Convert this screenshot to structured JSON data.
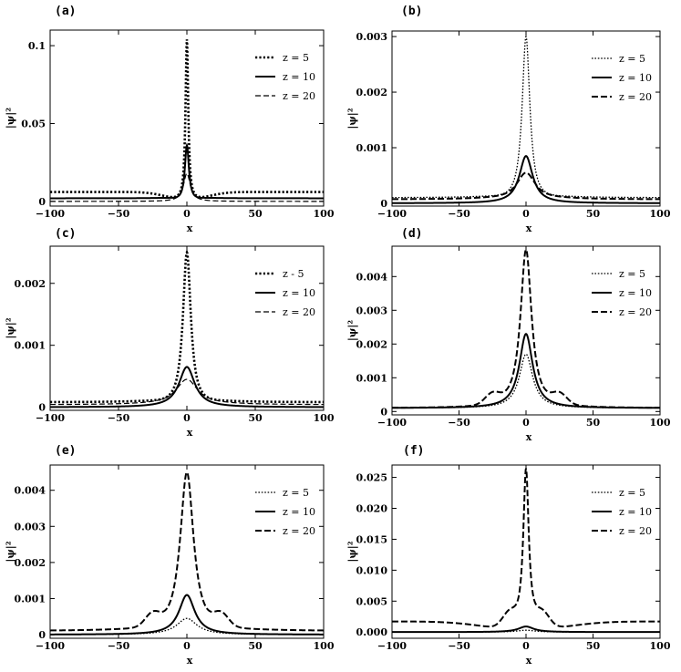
{
  "chart_data": [
    {
      "panel": "(a)",
      "type": "line",
      "xlabel": "x",
      "ylabel": "|ψ|²",
      "xlim": [
        -100,
        100
      ],
      "ylim": [
        -0.003,
        0.11
      ],
      "xticks": [
        -100,
        -50,
        0,
        50,
        100
      ],
      "yticks": [
        0,
        0.05,
        0.1
      ],
      "ytick_labels": [
        "0",
        "0.05",
        "0.1"
      ],
      "legend": [
        "z = 5",
        "z = 10",
        "z = 20"
      ],
      "legend_position": "top-right",
      "series": [
        {
          "name": "z = 5",
          "style": "dotted-thick",
          "baseline": 0.006,
          "dip": -0.006,
          "dip_w": 20,
          "peak": 0.104,
          "peak_w": 1.2
        },
        {
          "name": "z = 10",
          "style": "solid-thick",
          "baseline": 0.002,
          "dip": -0.002,
          "dip_w": 10,
          "peak": 0.036,
          "peak_w": 1.8
        },
        {
          "name": "z = 20",
          "style": "dashed-thin",
          "baseline": 0.0,
          "dip": 0.0,
          "dip_w": 10,
          "peak": 0.018,
          "peak_w": 3.0
        }
      ]
    },
    {
      "panel": "(b)",
      "type": "line",
      "xlabel": "x",
      "ylabel": "|ψ|²",
      "xlim": [
        -100,
        100
      ],
      "ylim": [
        -5e-05,
        0.0031
      ],
      "xticks": [
        -100,
        -50,
        0,
        50,
        100
      ],
      "yticks": [
        0,
        0.001,
        0.002,
        0.003
      ],
      "ytick_labels": [
        "0",
        "0.001",
        "0.002",
        "0.003"
      ],
      "legend": [
        "z = 5",
        "z = 10",
        "z = 20"
      ],
      "legend_position": "top-right",
      "series": [
        {
          "name": "z = 5",
          "style": "dotted-thin",
          "baseline": 0.0001,
          "dip": -0.0001,
          "dip_w": 20,
          "peak": 0.003,
          "peak_w": 3.5
        },
        {
          "name": "z = 10",
          "style": "solid-thick",
          "baseline": 0.0,
          "dip": 0.0,
          "dip_w": 10,
          "peak": 0.00085,
          "peak_w": 6
        },
        {
          "name": "z = 20",
          "style": "dashed-thick",
          "baseline": 7e-05,
          "dip": -7e-05,
          "dip_w": 18,
          "peak": 0.00055,
          "peak_w": 9
        }
      ]
    },
    {
      "panel": "(c)",
      "type": "line",
      "xlabel": "x",
      "ylabel": "|ψ|²",
      "xlim": [
        -100,
        100
      ],
      "ylim": [
        -5e-05,
        0.0026
      ],
      "xticks": [
        -100,
        -50,
        0,
        50,
        100
      ],
      "yticks": [
        0,
        0.001,
        0.002
      ],
      "ytick_labels": [
        "0",
        "0.001",
        "0.002"
      ],
      "legend": [
        "z - 5",
        "z = 10",
        "z = 20"
      ],
      "legend_position": "top-right",
      "series": [
        {
          "name": "z - 5",
          "style": "dotted-thick",
          "baseline": 8e-05,
          "dip": -8e-05,
          "dip_w": 20,
          "peak": 0.0025,
          "peak_w": 3.5
        },
        {
          "name": "z = 10",
          "style": "solid-thick",
          "baseline": 0.0,
          "dip": 0.0,
          "dip_w": 10,
          "peak": 0.00065,
          "peak_w": 7
        },
        {
          "name": "z = 20",
          "style": "dashed-thin",
          "baseline": 4e-05,
          "dip": -4e-05,
          "dip_w": 18,
          "peak": 0.00045,
          "peak_w": 10
        }
      ]
    },
    {
      "panel": "(d)",
      "type": "line",
      "xlabel": "x",
      "ylabel": "|ψ|²",
      "xlim": [
        -100,
        100
      ],
      "ylim": [
        -0.0001,
        0.0049
      ],
      "xticks": [
        -100,
        -50,
        0,
        50,
        100
      ],
      "yticks": [
        0,
        0.001,
        0.002,
        0.003,
        0.004
      ],
      "ytick_labels": [
        "0",
        "0.001",
        "0.002",
        "0.003",
        "0.004"
      ],
      "legend": [
        "z = 5",
        "z = 10",
        "z = 20"
      ],
      "legend_position": "top-right",
      "series": [
        {
          "name": "z = 5",
          "style": "dotted-thin",
          "baseline": 0.0001,
          "dip": 0.0,
          "dip_w": 10,
          "peak": 0.0016,
          "peak_w": 6
        },
        {
          "name": "z = 10",
          "style": "solid-thick",
          "baseline": 0.0001,
          "dip": 0.0,
          "dip_w": 10,
          "peak": 0.0022,
          "peak_w": 6
        },
        {
          "name": "z = 20",
          "style": "dashed-thick",
          "baseline": 0.0001,
          "dip": 0.0,
          "dip_w": 10,
          "peak": 0.0047,
          "peak_w": 5,
          "shoulder": 0.0003,
          "shoulder_x": 25
        }
      ]
    },
    {
      "panel": "(e)",
      "type": "line",
      "xlabel": "x",
      "ylabel": "|ψ|²",
      "xlim": [
        -100,
        100
      ],
      "ylim": [
        -0.0001,
        0.0047
      ],
      "xticks": [
        -100,
        -50,
        0,
        50,
        100
      ],
      "yticks": [
        0,
        0.001,
        0.002,
        0.003,
        0.004
      ],
      "ytick_labels": [
        "0",
        "0.001",
        "0.002",
        "0.003",
        "0.004"
      ],
      "legend": [
        "z = 5",
        "z = 10",
        "z = 20"
      ],
      "legend_position": "top-right",
      "series": [
        {
          "name": "z = 5",
          "style": "dotted-thin",
          "baseline": 0.0,
          "dip": 0.0,
          "dip_w": 10,
          "peak": 0.00045,
          "peak_w": 9
        },
        {
          "name": "z = 10",
          "style": "solid-thick",
          "baseline": 0.0,
          "dip": 0.0,
          "dip_w": 10,
          "peak": 0.0011,
          "peak_w": 7
        },
        {
          "name": "z = 20",
          "style": "dashed-thick",
          "baseline": 0.0001,
          "dip": -0.0001,
          "dip_w": 30,
          "peak": 0.0045,
          "peak_w": 6,
          "shoulder": 0.00035,
          "shoulder_x": 25
        }
      ]
    },
    {
      "panel": "(f)",
      "type": "line",
      "xlabel": "x",
      "ylabel": "|ψ|²",
      "xlim": [
        -100,
        100
      ],
      "ylim": [
        -0.001,
        0.027
      ],
      "xticks": [
        -100,
        -50,
        0,
        50,
        100
      ],
      "yticks": [
        0,
        0.005,
        0.01,
        0.015,
        0.02,
        0.025
      ],
      "ytick_labels": [
        "0.000",
        "0.005",
        "0.010",
        "0.015",
        "0.020",
        "0.025"
      ],
      "legend": [
        "z = 5",
        "z = 10",
        "z = 20"
      ],
      "legend_position": "top-right",
      "series": [
        {
          "name": "z = 5",
          "style": "dotted-thin",
          "baseline": 0.0,
          "dip": 0.0,
          "dip_w": 10,
          "peak": 0.0003,
          "peak_w": 8
        },
        {
          "name": "z = 10",
          "style": "solid-thick",
          "baseline": 0.0,
          "dip": 0.0,
          "dip_w": 10,
          "peak": 0.0009,
          "peak_w": 7
        },
        {
          "name": "z = 20",
          "style": "dashed-thick",
          "baseline": 0.0017,
          "dip": -0.0017,
          "dip_w": 40,
          "peak": 0.026,
          "peak_w": 2.5,
          "shoulder": 0.0025,
          "shoulder_x": 12
        }
      ]
    }
  ]
}
